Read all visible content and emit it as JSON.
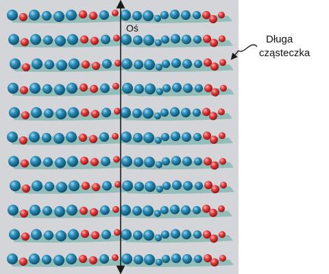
{
  "diagram": {
    "axis_label": "Oś",
    "callout_label": [
      "Długa",
      "cząsteczka"
    ],
    "molecule_rows": 11,
    "colors": {
      "panel": "#d3d5d8",
      "shadow": "#86b9b3",
      "large_atom": "#1f7ea6",
      "small_atom": "#e23a3a",
      "axis": "#1a1a1a"
    }
  }
}
